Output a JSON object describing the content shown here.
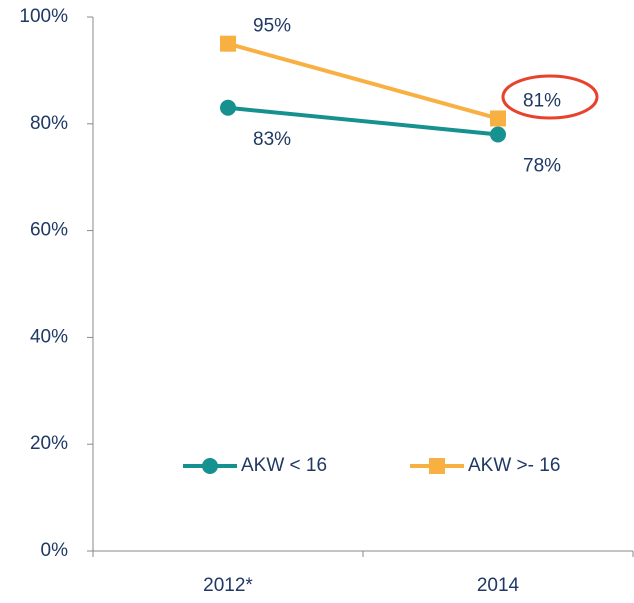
{
  "chart_data": {
    "type": "line",
    "categories": [
      "2012*",
      "2014"
    ],
    "series": [
      {
        "name": "AKW < 16",
        "color": "#17918f",
        "marker": "circle",
        "values": [
          83,
          78
        ],
        "value_labels": [
          "83%",
          "78%"
        ]
      },
      {
        "name": "AKW >- 16",
        "color": "#f9b042",
        "marker": "square",
        "values": [
          95,
          81
        ],
        "value_labels": [
          "95%",
          "81%"
        ]
      }
    ],
    "ylim": [
      0,
      100
    ],
    "yticks": [
      {
        "value": 0,
        "label": "0%"
      },
      {
        "value": 20,
        "label": "20%"
      },
      {
        "value": 40,
        "label": "40%"
      },
      {
        "value": 60,
        "label": "60%"
      },
      {
        "value": 80,
        "label": "80%"
      },
      {
        "value": 100,
        "label": "100%"
      }
    ]
  }
}
